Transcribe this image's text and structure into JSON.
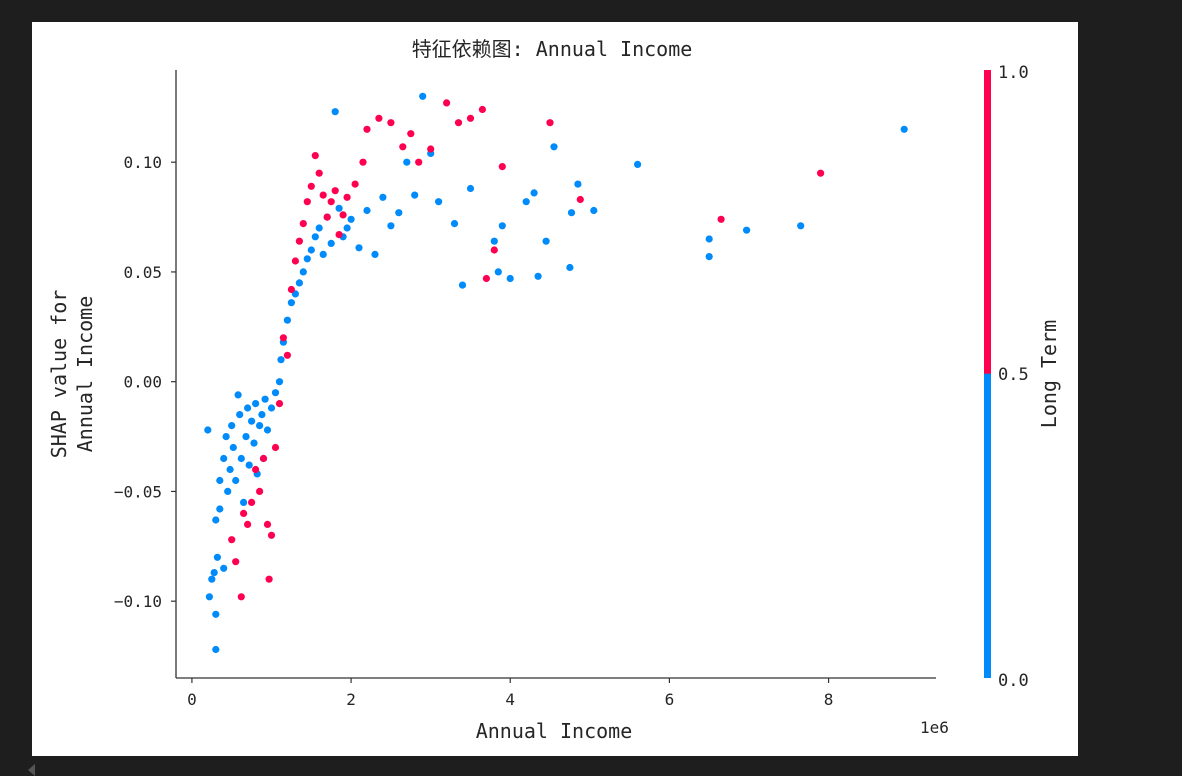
{
  "chart_data": {
    "type": "scatter",
    "title": "特征依赖图: Annual Income",
    "xlabel": "Annual Income",
    "x_offset_label": "1e6",
    "ylabel_lines": [
      "SHAP value for",
      "Annual Income"
    ],
    "xlim": [
      -0.2,
      9.35
    ],
    "ylim": [
      -0.135,
      0.142
    ],
    "xticks": [
      0,
      2,
      4,
      6,
      8
    ],
    "xtick_labels": [
      "0",
      "2",
      "4",
      "6",
      "8"
    ],
    "yticks": [
      -0.1,
      -0.05,
      0.0,
      0.05,
      0.1
    ],
    "ytick_labels": [
      "−0.10",
      "−0.05",
      "0.00",
      "0.05",
      "0.10"
    ],
    "grid": false,
    "colorbar": {
      "label": "Long Term",
      "ticks": [
        "1.0",
        "0.5",
        "0.0"
      ],
      "low_color": "#008bfb",
      "high_color": "#ff0051"
    },
    "series": [
      {
        "color": "#008bfb",
        "points": [
          [
            0.2,
            -0.022
          ],
          [
            0.22,
            -0.098
          ],
          [
            0.25,
            -0.09
          ],
          [
            0.28,
            -0.087
          ],
          [
            0.3,
            -0.122
          ],
          [
            0.3,
            -0.106
          ],
          [
            0.32,
            -0.08
          ],
          [
            0.3,
            -0.063
          ],
          [
            0.35,
            -0.045
          ],
          [
            0.35,
            -0.058
          ],
          [
            0.4,
            -0.035
          ],
          [
            0.4,
            -0.085
          ],
          [
            0.43,
            -0.025
          ],
          [
            0.45,
            -0.05
          ],
          [
            0.48,
            -0.04
          ],
          [
            0.5,
            -0.02
          ],
          [
            0.52,
            -0.03
          ],
          [
            0.55,
            -0.045
          ],
          [
            0.58,
            -0.006
          ],
          [
            0.6,
            -0.015
          ],
          [
            0.62,
            -0.035
          ],
          [
            0.65,
            -0.055
          ],
          [
            0.68,
            -0.025
          ],
          [
            0.7,
            -0.012
          ],
          [
            0.72,
            -0.038
          ],
          [
            0.75,
            -0.018
          ],
          [
            0.78,
            -0.028
          ],
          [
            0.8,
            -0.01
          ],
          [
            0.82,
            -0.042
          ],
          [
            0.85,
            -0.02
          ],
          [
            0.88,
            -0.015
          ],
          [
            0.9,
            -0.035
          ],
          [
            0.92,
            -0.008
          ],
          [
            0.95,
            -0.022
          ],
          [
            1.0,
            -0.012
          ],
          [
            1.05,
            -0.005
          ],
          [
            1.1,
            0.0
          ],
          [
            1.12,
            0.01
          ],
          [
            1.15,
            0.018
          ],
          [
            1.2,
            0.028
          ],
          [
            1.25,
            0.036
          ],
          [
            1.3,
            0.04
          ],
          [
            1.35,
            0.045
          ],
          [
            1.4,
            0.05
          ],
          [
            1.45,
            0.056
          ],
          [
            1.5,
            0.06
          ],
          [
            1.55,
            0.066
          ],
          [
            1.6,
            0.07
          ],
          [
            1.65,
            0.058
          ],
          [
            1.7,
            0.075
          ],
          [
            1.75,
            0.063
          ],
          [
            1.8,
            0.123
          ],
          [
            1.85,
            0.079
          ],
          [
            1.9,
            0.066
          ],
          [
            1.95,
            0.07
          ],
          [
            2.0,
            0.074
          ],
          [
            2.1,
            0.061
          ],
          [
            2.2,
            0.078
          ],
          [
            2.3,
            0.058
          ],
          [
            2.4,
            0.084
          ],
          [
            2.5,
            0.071
          ],
          [
            2.6,
            0.077
          ],
          [
            2.7,
            0.1
          ],
          [
            2.8,
            0.085
          ],
          [
            2.9,
            0.13
          ],
          [
            3.0,
            0.104
          ],
          [
            3.1,
            0.082
          ],
          [
            3.3,
            0.072
          ],
          [
            3.4,
            0.044
          ],
          [
            3.5,
            0.088
          ],
          [
            3.8,
            0.064
          ],
          [
            3.85,
            0.05
          ],
          [
            3.9,
            0.071
          ],
          [
            4.0,
            0.047
          ],
          [
            4.2,
            0.082
          ],
          [
            4.3,
            0.086
          ],
          [
            4.35,
            0.048
          ],
          [
            4.45,
            0.064
          ],
          [
            4.55,
            0.107
          ],
          [
            4.75,
            0.052
          ],
          [
            4.77,
            0.077
          ],
          [
            4.85,
            0.09
          ],
          [
            5.05,
            0.078
          ],
          [
            5.6,
            0.099
          ],
          [
            6.5,
            0.065
          ],
          [
            6.5,
            0.057
          ],
          [
            6.97,
            0.069
          ],
          [
            7.65,
            0.071
          ],
          [
            8.95,
            0.115
          ]
        ]
      },
      {
        "color": "#ff0051",
        "points": [
          [
            0.5,
            -0.072
          ],
          [
            0.55,
            -0.082
          ],
          [
            0.62,
            -0.098
          ],
          [
            0.65,
            -0.06
          ],
          [
            0.7,
            -0.065
          ],
          [
            0.75,
            -0.055
          ],
          [
            0.8,
            -0.04
          ],
          [
            0.85,
            -0.05
          ],
          [
            0.9,
            -0.035
          ],
          [
            0.95,
            -0.065
          ],
          [
            0.97,
            -0.09
          ],
          [
            1.0,
            -0.07
          ],
          [
            1.05,
            -0.03
          ],
          [
            1.1,
            -0.01
          ],
          [
            1.15,
            0.02
          ],
          [
            1.2,
            0.012
          ],
          [
            1.25,
            0.042
          ],
          [
            1.3,
            0.055
          ],
          [
            1.35,
            0.064
          ],
          [
            1.4,
            0.072
          ],
          [
            1.45,
            0.082
          ],
          [
            1.5,
            0.089
          ],
          [
            1.55,
            0.103
          ],
          [
            1.6,
            0.095
          ],
          [
            1.65,
            0.085
          ],
          [
            1.7,
            0.075
          ],
          [
            1.75,
            0.082
          ],
          [
            1.8,
            0.087
          ],
          [
            1.85,
            0.067
          ],
          [
            1.9,
            0.076
          ],
          [
            1.95,
            0.084
          ],
          [
            2.05,
            0.09
          ],
          [
            2.15,
            0.1
          ],
          [
            2.2,
            0.115
          ],
          [
            2.35,
            0.12
          ],
          [
            2.5,
            0.118
          ],
          [
            2.65,
            0.107
          ],
          [
            2.75,
            0.113
          ],
          [
            2.85,
            0.1
          ],
          [
            3.0,
            0.106
          ],
          [
            3.2,
            0.127
          ],
          [
            3.35,
            0.118
          ],
          [
            3.5,
            0.12
          ],
          [
            3.65,
            0.124
          ],
          [
            3.7,
            0.047
          ],
          [
            3.8,
            0.06
          ],
          [
            3.9,
            0.098
          ],
          [
            4.5,
            0.118
          ],
          [
            4.88,
            0.083
          ],
          [
            6.65,
            0.074
          ],
          [
            7.9,
            0.095
          ]
        ]
      }
    ]
  }
}
